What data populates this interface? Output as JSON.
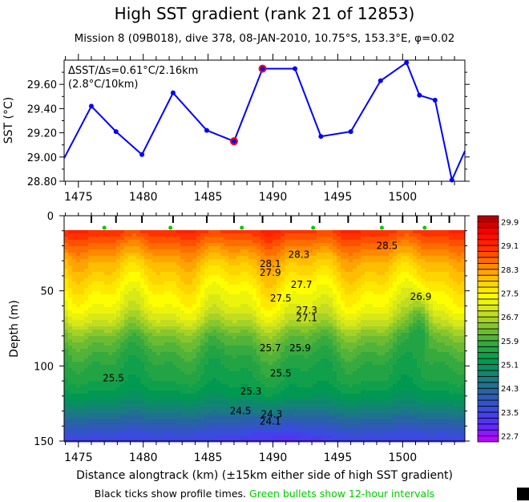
{
  "title": "High SST gradient (rank 21 of 12853)",
  "subtitle": "Mission 8 (09B018),  dive 378,  08-JAN-2010,  10.75°S, 153.3°E,  φ=0.02",
  "footnote_black": "Black ticks show profile times.",
  "footnote_green": "Green bullets show 12-hour intervals",
  "colors": {
    "line": "#0000ff",
    "highlight": "#ff0000",
    "bullet": "#00cc00",
    "contour": "#000000"
  },
  "chart_data": [
    {
      "type": "line",
      "ylabel": "SST (°C)",
      "xlim": [
        1473.9,
        1504.8
      ],
      "ylim": [
        28.8,
        29.8
      ],
      "xticks": [
        "1475",
        "1480",
        "1485",
        "1490",
        "1495",
        "1500"
      ],
      "yticks": [
        "28.80",
        "29.00",
        "29.20",
        "29.40",
        "29.60"
      ],
      "annotation": [
        "ΔSST/Δs=0.61°C/2.16km",
        "(2.8°C/10km)"
      ],
      "x": [
        1473.9,
        1476.0,
        1477.9,
        1479.9,
        1482.3,
        1484.9,
        1487.0,
        1489.2,
        1491.7,
        1493.7,
        1496.0,
        1498.3,
        1500.3,
        1501.3,
        1502.5,
        1503.8,
        1504.8
      ],
      "y": [
        28.99,
        29.42,
        29.21,
        29.02,
        29.53,
        29.22,
        29.13,
        29.73,
        29.73,
        29.17,
        29.21,
        29.63,
        29.78,
        29.51,
        29.47,
        28.81,
        29.05
      ],
      "highlight_x": [
        1487.0,
        1489.2
      ]
    },
    {
      "type": "heatmap",
      "xlabel": "Distance alongtrack (km) (±15km either side of high SST gradient)",
      "ylabel": "Depth (m)",
      "xlim": [
        1473.9,
        1504.8
      ],
      "ylim": [
        150,
        0
      ],
      "xticks": [
        "1475",
        "1480",
        "1485",
        "1490",
        "1495",
        "1500"
      ],
      "yticks": [
        "0",
        "50",
        "100",
        "150"
      ],
      "contour_interval": 0.2,
      "profile_km": [
        1476.0,
        1477.9,
        1479.9,
        1482.3,
        1484.9,
        1487.0,
        1489.2,
        1491.4,
        1493.6,
        1495.8,
        1498.3,
        1500.0,
        1501.1,
        1502.2,
        1503.6
      ],
      "bullet_km": [
        1477.0,
        1482.1,
        1487.6,
        1493.1,
        1498.4,
        1501.7
      ],
      "contour_labels": [
        {
          "text": "28.5",
          "km": 1498.8,
          "depth": 20
        },
        {
          "text": "28.3",
          "km": 1492.0,
          "depth": 26
        },
        {
          "text": "28.1",
          "km": 1489.8,
          "depth": 32
        },
        {
          "text": "27.9",
          "km": 1489.8,
          "depth": 38
        },
        {
          "text": "27.7",
          "km": 1492.2,
          "depth": 46
        },
        {
          "text": "27.5",
          "km": 1490.6,
          "depth": 55
        },
        {
          "text": "27.3",
          "km": 1492.6,
          "depth": 63
        },
        {
          "text": "27.1",
          "km": 1492.6,
          "depth": 68
        },
        {
          "text": "26.9",
          "km": 1501.4,
          "depth": 54
        },
        {
          "text": "25.7",
          "km": 1489.8,
          "depth": 88
        },
        {
          "text": "25.9",
          "km": 1492.1,
          "depth": 88
        },
        {
          "text": "25.5",
          "km": 1477.7,
          "depth": 108
        },
        {
          "text": "25.5",
          "km": 1490.6,
          "depth": 105
        },
        {
          "text": "25.3",
          "km": 1488.3,
          "depth": 117
        },
        {
          "text": "24.5",
          "km": 1487.5,
          "depth": 130
        },
        {
          "text": "24.3",
          "km": 1489.9,
          "depth": 132
        },
        {
          "text": "24.1",
          "km": 1489.8,
          "depth": 137
        }
      ],
      "colorbar": {
        "range": [
          22.5,
          30.1
        ],
        "labels": [
          "29.9",
          "29.1",
          "28.3",
          "27.5",
          "26.7",
          "25.9",
          "25.1",
          "24.3",
          "23.5",
          "22.7"
        ],
        "palette": [
          "#c800ff",
          "#5a2cff",
          "#3a4ae0",
          "#2a60a8",
          "#15807a",
          "#009a50",
          "#30a840",
          "#7ac030",
          "#c8e020",
          "#ffff00",
          "#ffc800",
          "#ff8000",
          "#ff3000",
          "#ff0000",
          "#a00000"
        ]
      }
    }
  ]
}
